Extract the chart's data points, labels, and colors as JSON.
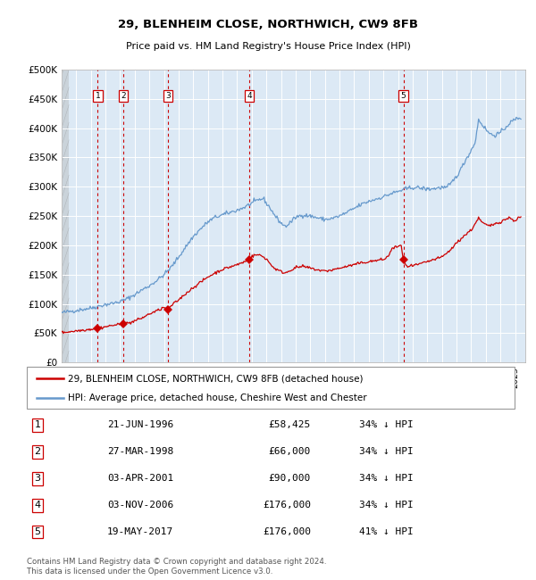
{
  "title": "29, BLENHEIM CLOSE, NORTHWICH, CW9 8FB",
  "subtitle": "Price paid vs. HM Land Registry's House Price Index (HPI)",
  "background_color": "#ffffff",
  "chart_bg_color": "#dce9f5",
  "grid_color": "#ffffff",
  "sale_line_color": "#cc0000",
  "hpi_line_color": "#6699cc",
  "dashed_line_color": "#cc0000",
  "ylim": [
    0,
    500000
  ],
  "yticks": [
    0,
    50000,
    100000,
    150000,
    200000,
    250000,
    300000,
    350000,
    400000,
    450000,
    500000
  ],
  "ytick_labels": [
    "£0",
    "£50K",
    "£100K",
    "£150K",
    "£200K",
    "£250K",
    "£300K",
    "£350K",
    "£400K",
    "£450K",
    "£500K"
  ],
  "xlim_start": 1994.0,
  "xlim_end": 2025.7,
  "xtick_start": 1994,
  "xtick_end": 2026,
  "sale_events": [
    {
      "num": 1,
      "year": 1996.47,
      "price": 58425
    },
    {
      "num": 2,
      "year": 1998.23,
      "price": 66000
    },
    {
      "num": 3,
      "year": 2001.25,
      "price": 90000
    },
    {
      "num": 4,
      "year": 2006.83,
      "price": 176000
    },
    {
      "num": 5,
      "year": 2017.37,
      "price": 176000
    }
  ],
  "legend_entries": [
    {
      "label": "29, BLENHEIM CLOSE, NORTHWICH, CW9 8FB (detached house)",
      "color": "#cc0000"
    },
    {
      "label": "HPI: Average price, detached house, Cheshire West and Chester",
      "color": "#6699cc"
    }
  ],
  "table_rows": [
    {
      "num": "1",
      "date": "21-JUN-1996",
      "price": "£58,425",
      "hpi": "34% ↓ HPI"
    },
    {
      "num": "2",
      "date": "27-MAR-1998",
      "price": "£66,000",
      "hpi": "34% ↓ HPI"
    },
    {
      "num": "3",
      "date": "03-APR-2001",
      "price": "£90,000",
      "hpi": "34% ↓ HPI"
    },
    {
      "num": "4",
      "date": "03-NOV-2006",
      "price": "£176,000",
      "hpi": "34% ↓ HPI"
    },
    {
      "num": "5",
      "date": "19-MAY-2017",
      "price": "£176,000",
      "hpi": "41% ↓ HPI"
    }
  ],
  "footer": "Contains HM Land Registry data © Crown copyright and database right 2024.\nThis data is licensed under the Open Government Licence v3.0."
}
